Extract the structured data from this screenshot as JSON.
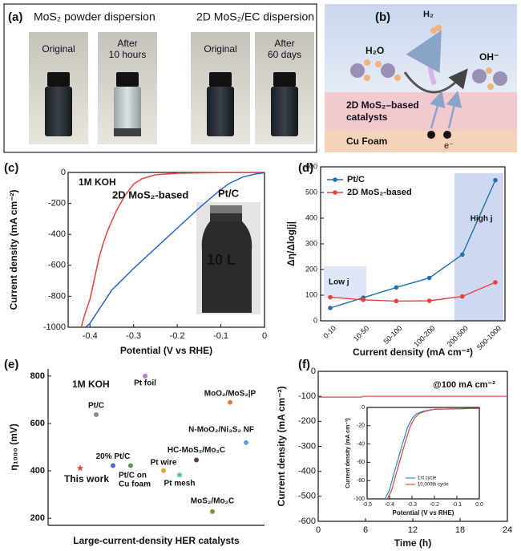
{
  "panel_a": {
    "panel_label": "(a)",
    "groups": [
      "MoS₂ powder dispersion",
      "2D MoS₂/EC dispersion"
    ],
    "photos": [
      [
        "Original"
      ],
      [
        "After",
        "10 hours"
      ],
      [
        "Original"
      ],
      [
        "After",
        "60 days"
      ]
    ]
  },
  "panel_b": {
    "panel_label": "(b)",
    "h2": "H₂",
    "h2o": "H₂O",
    "oh": "OH⁻",
    "catalyst_label": [
      "2D MoS₂–based",
      "catalysts"
    ],
    "foam_label": "Cu Foam",
    "electron": "e⁻"
  },
  "chart_data": [
    {
      "type": "line",
      "panel_label": "(c)",
      "xlabel": "Potential (V vs RHE)",
      "ylabel": "Current density (mA cm⁻²)",
      "xlim": [
        -0.45,
        0
      ],
      "ylim": [
        -1000,
        0
      ],
      "xticks": [
        -0.4,
        -0.3,
        -0.2,
        -0.1,
        0
      ],
      "yticks": [
        -1000,
        -800,
        -600,
        -400,
        -200,
        0
      ],
      "annotations": [
        "1M KOH",
        "10 L"
      ],
      "series": [
        {
          "name": "2D MoS₂-based",
          "color": "#e8413c",
          "x": [
            0,
            -0.1,
            -0.2,
            -0.25,
            -0.28,
            -0.3,
            -0.32,
            -0.34,
            -0.36,
            -0.37,
            -0.38,
            -0.39,
            -0.4,
            -0.41,
            -0.42
          ],
          "y": [
            0,
            -1,
            -5,
            -15,
            -40,
            -75,
            -150,
            -250,
            -380,
            -460,
            -560,
            -690,
            -820,
            -900,
            -1000
          ]
        },
        {
          "name": "Pt/C",
          "color": "#2a63c4",
          "x": [
            0,
            -0.02,
            -0.05,
            -0.08,
            -0.1,
            -0.15,
            -0.2,
            -0.25,
            -0.3,
            -0.35,
            -0.4,
            -0.41
          ],
          "y": [
            -2,
            -10,
            -30,
            -70,
            -110,
            -230,
            -360,
            -490,
            -620,
            -760,
            -975,
            -1000
          ]
        }
      ]
    },
    {
      "type": "category-line",
      "panel_label": "(d)",
      "xlabel": "Current density (mA cm⁻²)",
      "ylabel": "Δη/Δlog|j|",
      "categories": [
        "0-10",
        "10-50",
        "50-100",
        "100-200",
        "200-500",
        "500-1000"
      ],
      "ylim": [
        0,
        600
      ],
      "yticks": [
        0,
        100,
        200,
        300,
        400,
        500,
        600
      ],
      "legend": "top-left",
      "annotations": [
        "Low j",
        "High j"
      ],
      "series": [
        {
          "name": "Pt/C",
          "color": "#1f6fa8",
          "values": [
            50,
            90,
            130,
            167,
            258,
            548
          ]
        },
        {
          "name": "2D MoS₂-based",
          "color": "#e8413c",
          "values": [
            92,
            82,
            77,
            78,
            95,
            150
          ]
        }
      ]
    },
    {
      "type": "scatter",
      "panel_label": "(e)",
      "xlabel": "Large-current-density HER catalysts",
      "ylabel": "η₁₀₀₀ (mV)",
      "ylim": [
        170,
        830
      ],
      "yticks": [
        200,
        400,
        600,
        800
      ],
      "annotations": [
        "1M KOH"
      ],
      "points": [
        {
          "label": "This work",
          "value": 411,
          "color": "#e8413c",
          "marker": "star",
          "label_color": "#e8413c"
        },
        {
          "label": "Pt/C",
          "value": 637,
          "color": "#888888"
        },
        {
          "label": "20% Pt/C",
          "value": 422,
          "color": "#3b6fc2"
        },
        {
          "label": "Pt/C on Cu foam",
          "value": 422,
          "color": "#4a9a5a"
        },
        {
          "label": "Pt foil",
          "value": 800,
          "color": "#b07cc6"
        },
        {
          "label": "Pt wire",
          "value": 401,
          "color": "#d4a93a"
        },
        {
          "label": "Pt mesh",
          "value": 383,
          "color": "#5cc0c0"
        },
        {
          "label": "HC-MoS₂/Mo₂C",
          "value": 446,
          "color": "#5b3a4a"
        },
        {
          "label": "MoS₂/Mo₂C",
          "value": 228,
          "color": "#8c8a3a"
        },
        {
          "label": "MoO₂/MoS₂|P",
          "value": 689,
          "color": "#e07b39"
        },
        {
          "label": "N-MoO₂/Ni₃S₂ NF",
          "value": 519,
          "color": "#5aa0d8"
        }
      ]
    },
    {
      "type": "line",
      "panel_label": "(f)",
      "xlabel": "Time (h)",
      "ylabel": "Current density (mA cm⁻²)",
      "xlim": [
        0,
        24
      ],
      "ylim": [
        -600,
        0
      ],
      "xticks": [
        0,
        6,
        12,
        18,
        24
      ],
      "yticks": [
        -600,
        -500,
        -400,
        -300,
        -200,
        -100,
        0
      ],
      "annotations": [
        "@100 mA cm⁻²"
      ],
      "series": [
        {
          "color": "#e8413c",
          "x": [
            0,
            5.5,
            5.6,
            24
          ],
          "y": [
            -103,
            -103,
            -100,
            -100
          ]
        }
      ],
      "inset": {
        "type": "line",
        "xlabel": "Potential (V vs RHE)",
        "ylabel": "Current density (mA cm⁻²)",
        "xlim": [
          -0.5,
          0
        ],
        "ylim": [
          -100,
          0
        ],
        "xticks": [
          -0.5,
          -0.4,
          -0.3,
          -0.2,
          -0.1,
          {
            "value": 0,
            "label": "0.0"
          }
        ],
        "yticks": [
          -100,
          -80,
          -60,
          -40,
          -20,
          0
        ],
        "legend": "bottom-left",
        "series": [
          {
            "name": "1st cycle",
            "color": "#2a8ac4",
            "x": [
              -0.42,
              -0.4,
              -0.38,
              -0.36,
              -0.34,
              -0.32,
              -0.3,
              -0.28,
              -0.25,
              -0.2,
              0
            ],
            "y": [
              -100,
              -90,
              -72,
              -55,
              -38,
              -22,
              -12,
              -7,
              -4,
              -2,
              -1
            ]
          },
          {
            "name": "10,000th cycle",
            "color": "#e8413c",
            "x": [
              -0.41,
              -0.39,
              -0.37,
              -0.35,
              -0.33,
              -0.31,
              -0.29,
              -0.27,
              -0.24,
              -0.2,
              0
            ],
            "y": [
              -100,
              -90,
              -72,
              -55,
              -38,
              -22,
              -12,
              -7,
              -4,
              -2,
              -1
            ]
          }
        ]
      }
    }
  ]
}
